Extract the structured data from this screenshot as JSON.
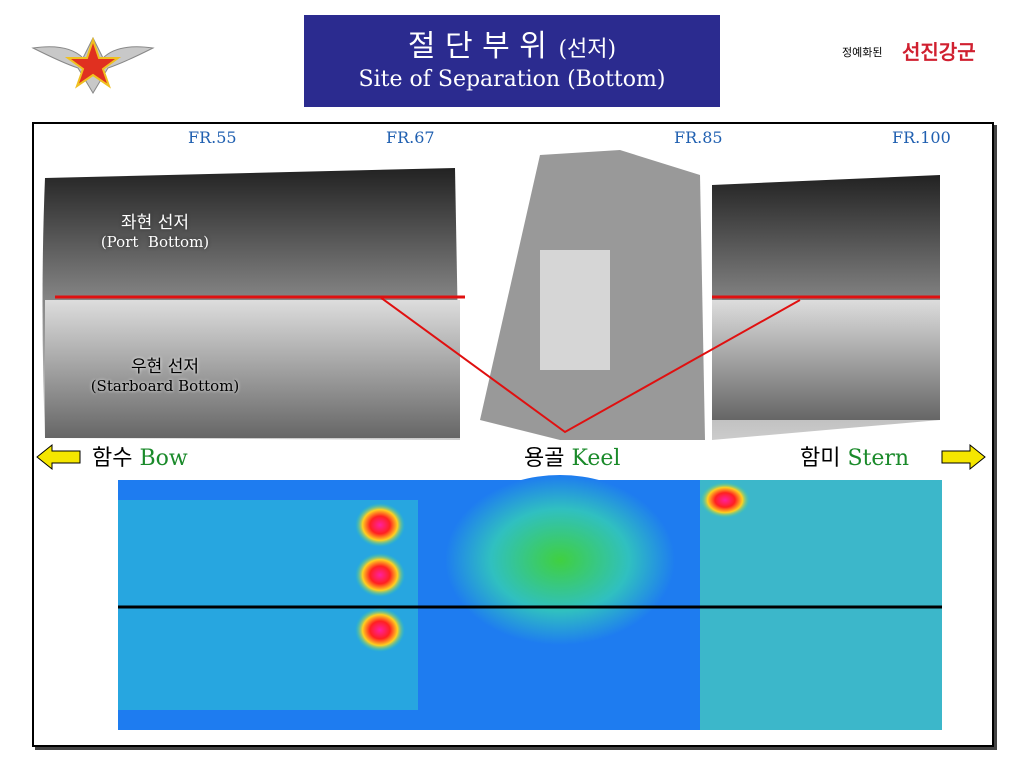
{
  "header": {
    "title_ko": "절 단 부 위",
    "title_ko_sub": "(선저)",
    "title_en": "Site of Separation (Bottom)",
    "logo_text_left": "정예화된",
    "logo_text_right": "선진강군"
  },
  "hull_scan": {
    "frames": [
      "FR.55",
      "FR.67",
      "FR.85",
      "FR.100"
    ],
    "port_label": "좌현 선저",
    "port_label_en": "(Port  Bottom)",
    "starboard_label": "우현 선저",
    "starboard_label_en": "(Starboard Bottom)"
  },
  "directions": {
    "bow_ko": "함수",
    "bow_en": "Bow",
    "keel_ko": "용골",
    "keel_en": "Keel",
    "stern_ko": "함미",
    "stern_en": "Stern"
  }
}
